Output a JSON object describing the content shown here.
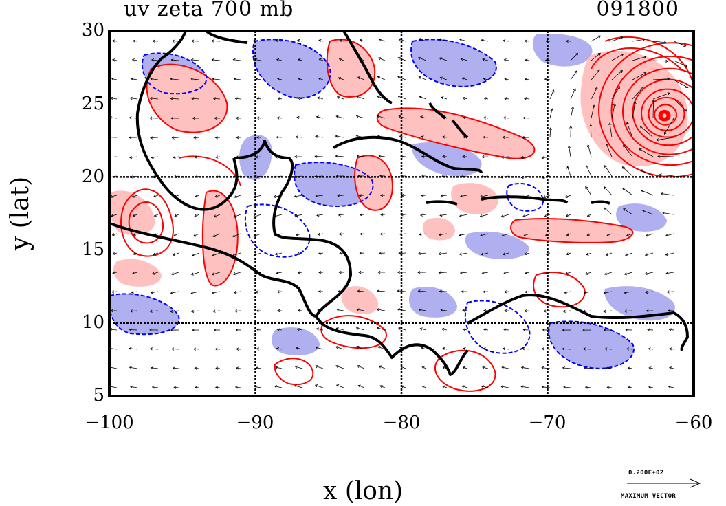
{
  "title_left": "uv zeta 700 mb",
  "title_right": "091800",
  "axes": {
    "xlabel": "x (lon)",
    "ylabel": "y (lat)",
    "xlim": [
      -100,
      -60
    ],
    "ylim": [
      5,
      30
    ],
    "x_ticks": [
      "−100",
      "−90",
      "−80",
      "−70",
      "−60"
    ],
    "y_ticks": [
      "30",
      "25",
      "20",
      "15",
      "10",
      "5"
    ],
    "grid_lon": [
      -90,
      -80,
      -70
    ],
    "grid_lat": [
      20,
      10
    ]
  },
  "colors": {
    "positive_contour": "#ff0000",
    "positive_fill": "#ffc0c0",
    "negative_contour": "#0000ff",
    "negative_fill": "#b0b0f0",
    "coastline": "#000000"
  },
  "reference_vector": {
    "value_label": "0.200E+02",
    "label": "MAXIMUM VECTOR"
  },
  "features": {
    "cyclone_center": [
      -62,
      24.2
    ]
  }
}
